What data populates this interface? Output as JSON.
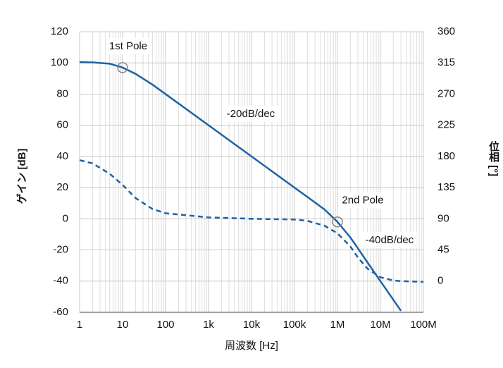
{
  "chart_data": {
    "type": "line",
    "x_label": "周波数 [Hz]",
    "y_label": "ゲイン [dB]",
    "y2_label": "位相 [°]",
    "xscale": "log",
    "grid": true,
    "minor_grid": true,
    "xlim": [
      1,
      100000000
    ],
    "xticks": [
      1,
      10,
      100,
      {
        "value": 1000,
        "label": "1k"
      },
      {
        "value": 10000,
        "label": "10k"
      },
      {
        "value": 100000,
        "label": "100k"
      },
      {
        "value": 1000000,
        "label": "1M"
      },
      {
        "value": 10000000,
        "label": "10M"
      },
      {
        "value": 100000000,
        "label": "100M"
      }
    ],
    "ylim": [
      -60,
      120
    ],
    "yticks": [
      -60,
      -40,
      -20,
      0,
      20,
      40,
      60,
      80,
      100,
      120
    ],
    "y2lim": [
      -45,
      360
    ],
    "y2ticks": [
      0,
      45,
      90,
      135,
      180,
      225,
      270,
      315,
      360
    ],
    "x": [
      1,
      2,
      5,
      10,
      20,
      50,
      100,
      1000,
      10000,
      100000,
      200000,
      500000,
      1000000,
      2000000,
      3000000,
      5000000,
      10000000,
      20000000,
      30000000,
      100000000
    ],
    "series": [
      {
        "name": "ゲイン",
        "color": "#1f62a3",
        "dash": false,
        "values": [
          100.5,
          100.3,
          99.5,
          97,
          93,
          86,
          80,
          60,
          40,
          20,
          14,
          6,
          -2,
          -12,
          -19,
          -28,
          -40,
          -52,
          -59,
          null
        ]
      },
      {
        "name": "位相",
        "color": "#1f62a3",
        "dash": true,
        "axis": "y2",
        "values": [
          174.6,
          170,
          155,
          139,
          120,
          104,
          98,
          92,
          90,
          89,
          87,
          80,
          69,
          50,
          34,
          18,
          5.6,
          1,
          0,
          -1
        ]
      }
    ],
    "poles": [
      {
        "text": "1st Pole",
        "x": 10,
        "y": 97
      },
      {
        "text": "2nd Pole",
        "x": 1000000,
        "y": -2
      }
    ],
    "slope_labels": [
      "-20dB/dec",
      "-40dB/dec"
    ]
  }
}
